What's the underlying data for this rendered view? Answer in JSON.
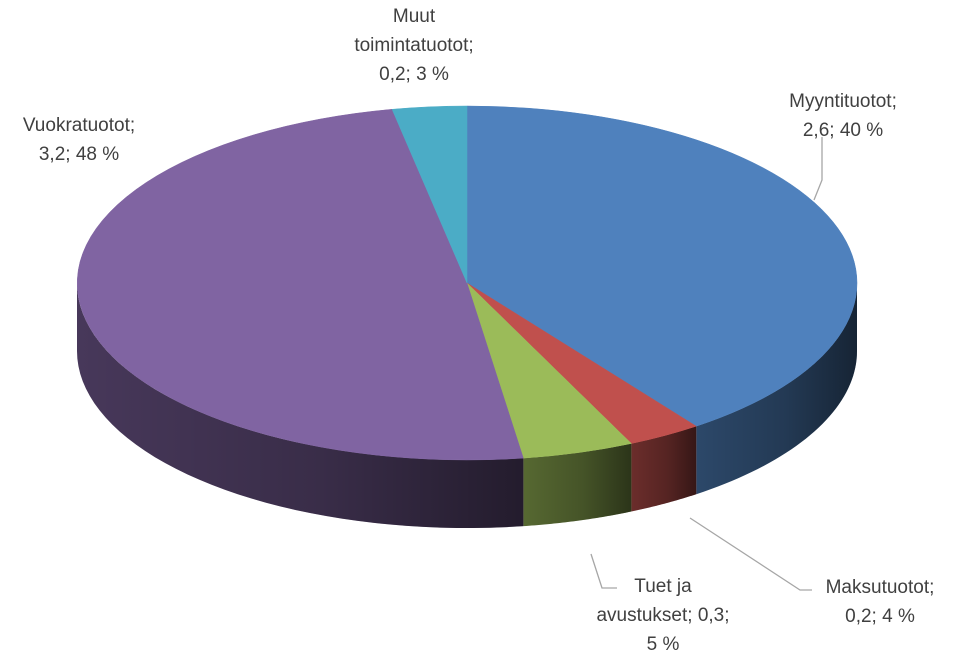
{
  "chart_data": {
    "type": "pie",
    "title": "",
    "start": "top",
    "direction": "clockwise",
    "slices": [
      {
        "label": "Myyntituotot",
        "value": 2.6,
        "percent": "40 %",
        "color": "#4f81bd",
        "label_lines": [
          "Myyntituotot;",
          "2,6; 40 %"
        ]
      },
      {
        "label": "Maksutuotot",
        "value": 0.2,
        "percent": "4 %",
        "color": "#c0504d",
        "label_lines": [
          "Maksutuotot;",
          "0,2; 4 %"
        ]
      },
      {
        "label": "Tuet ja avustukset",
        "value": 0.3,
        "percent": "5 %",
        "color": "#9bbb59",
        "label_lines": [
          "Tuet ja",
          "avustukset;  0,3;",
          "5 %"
        ]
      },
      {
        "label": "Vuokratuotot",
        "value": 3.2,
        "percent": "48 %",
        "color": "#8064a2",
        "label_lines": [
          "Vuokratuotot;",
          "3,2; 48 %"
        ]
      },
      {
        "label": "Muut toimintatuotot",
        "value": 0.2,
        "percent": "3 %",
        "color": "#4bacc6",
        "label_lines": [
          "Muut",
          "toimintatuotot;",
          "0,2; 3 %"
        ]
      }
    ]
  }
}
